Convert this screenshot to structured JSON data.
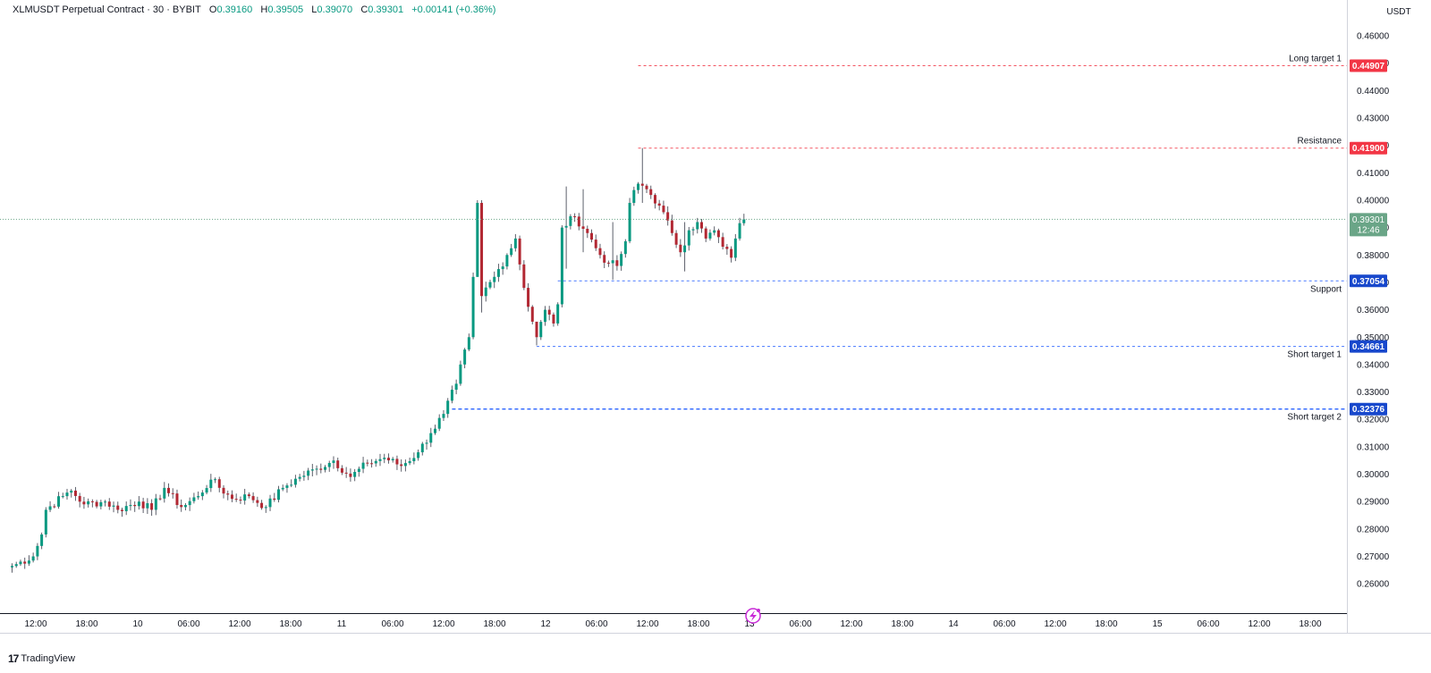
{
  "header": {
    "symbol": "XLMUSDT Perpetual Contract · 30 · BYBIT",
    "ohlc": {
      "open_label": "O",
      "open": "0.39160",
      "high_label": "H",
      "high": "0.39505",
      "low_label": "L",
      "low": "0.39070",
      "close_label": "C",
      "close": "0.39301",
      "change": "+0.00141 (+0.36%)"
    }
  },
  "price_axis": {
    "unit": "USDT"
  },
  "branding": {
    "name": "TradingView",
    "logo_text": "17"
  },
  "last_price": {
    "value": "0.39301",
    "countdown": "12:46"
  },
  "colors": {
    "up": "#089981",
    "down": "#b22833",
    "resistance": "#f23645",
    "support": "#2962ff",
    "last_price": "#6aa587",
    "grid_text": "#131722"
  },
  "chart_data": {
    "type": "candlestick",
    "y_range": [
      0.25,
      0.47
    ],
    "y_ticks": [
      "0.26000",
      "0.27000",
      "0.28000",
      "0.29000",
      "0.30000",
      "0.31000",
      "0.32000",
      "0.33000",
      "0.34000",
      "0.35000",
      "0.36000",
      "0.37000",
      "0.38000",
      "0.39000",
      "0.40000",
      "0.41000",
      "0.42000",
      "0.43000",
      "0.44000",
      "0.45000",
      "0.46000"
    ],
    "x_ticks": [
      "12:00",
      "18:00",
      "10",
      "06:00",
      "12:00",
      "18:00",
      "11",
      "06:00",
      "12:00",
      "18:00",
      "12",
      "06:00",
      "12:00",
      "18:00",
      "13",
      "06:00",
      "12:00",
      "18:00",
      "14",
      "06:00",
      "12:00",
      "18:00",
      "15",
      "06:00",
      "12:00",
      "18:00"
    ],
    "levels": [
      {
        "label": "Long target 1",
        "value": 0.44907,
        "value_text": "0.44907",
        "kind": "resistance",
        "start_index": 148,
        "style": "dashed"
      },
      {
        "label": "Resistance",
        "value": 0.419,
        "value_text": "0.41900",
        "kind": "resistance",
        "start_index": 148,
        "style": "dashed"
      },
      {
        "label": "Support",
        "value": 0.37054,
        "value_text": "0.37054",
        "kind": "support",
        "start_index": 129,
        "style": "dashed"
      },
      {
        "label": "Short target 1",
        "value": 0.34661,
        "value_text": "0.34661",
        "kind": "support",
        "start_index": 124,
        "style": "dashed"
      },
      {
        "label": "Short target 2",
        "value": 0.32376,
        "value_text": "0.32376",
        "kind": "support",
        "start_index": 104,
        "style": "dashed-bold"
      }
    ],
    "anchors": [
      [
        0,
        0.2665
      ],
      [
        5,
        0.27
      ],
      [
        7,
        0.278
      ],
      [
        8,
        0.287
      ],
      [
        12,
        0.292
      ],
      [
        14,
        0.294
      ],
      [
        17,
        0.289
      ],
      [
        22,
        0.29
      ],
      [
        25,
        0.287
      ],
      [
        30,
        0.29
      ],
      [
        33,
        0.287
      ],
      [
        36,
        0.295
      ],
      [
        40,
        0.288
      ],
      [
        44,
        0.292
      ],
      [
        47,
        0.298
      ],
      [
        52,
        0.291
      ],
      [
        56,
        0.292
      ],
      [
        60,
        0.288
      ],
      [
        64,
        0.295
      ],
      [
        68,
        0.299
      ],
      [
        72,
        0.302
      ],
      [
        76,
        0.305
      ],
      [
        80,
        0.299
      ],
      [
        84,
        0.304
      ],
      [
        88,
        0.306
      ],
      [
        92,
        0.303
      ],
      [
        96,
        0.308
      ],
      [
        99,
        0.315
      ],
      [
        102,
        0.322
      ],
      [
        105,
        0.333
      ],
      [
        108,
        0.35
      ],
      [
        109,
        0.372
      ],
      [
        110,
        0.399
      ],
      [
        111,
        0.365
      ],
      [
        114,
        0.372
      ],
      [
        117,
        0.38
      ],
      [
        119,
        0.386
      ],
      [
        121,
        0.368
      ],
      [
        124,
        0.35
      ],
      [
        126,
        0.36
      ],
      [
        128,
        0.355
      ],
      [
        129,
        0.362
      ],
      [
        130,
        0.39
      ],
      [
        133,
        0.394
      ],
      [
        136,
        0.388
      ],
      [
        139,
        0.38
      ],
      [
        141,
        0.377
      ],
      [
        143,
        0.376
      ],
      [
        145,
        0.385
      ],
      [
        146,
        0.399
      ],
      [
        148,
        0.406
      ],
      [
        150,
        0.404
      ],
      [
        153,
        0.398
      ],
      [
        156,
        0.388
      ],
      [
        158,
        0.381
      ],
      [
        160,
        0.389
      ],
      [
        162,
        0.392
      ],
      [
        164,
        0.386
      ],
      [
        166,
        0.389
      ],
      [
        168,
        0.383
      ],
      [
        170,
        0.379
      ],
      [
        171,
        0.386
      ],
      [
        172,
        0.3916
      ],
      [
        173,
        0.39301
      ]
    ],
    "spikes": [
      {
        "index": 110,
        "high": 0.4,
        "low": 0.372
      },
      {
        "index": 111,
        "high": 0.4,
        "low": 0.359
      },
      {
        "index": 124,
        "high": 0.352,
        "low": 0.347
      },
      {
        "index": 131,
        "high": 0.405,
        "low": 0.375
      },
      {
        "index": 135,
        "high": 0.404,
        "low": 0.381
      },
      {
        "index": 142,
        "high": 0.392,
        "low": 0.371
      },
      {
        "index": 149,
        "high": 0.419,
        "low": 0.399
      },
      {
        "index": 159,
        "high": 0.392,
        "low": 0.374
      }
    ]
  }
}
